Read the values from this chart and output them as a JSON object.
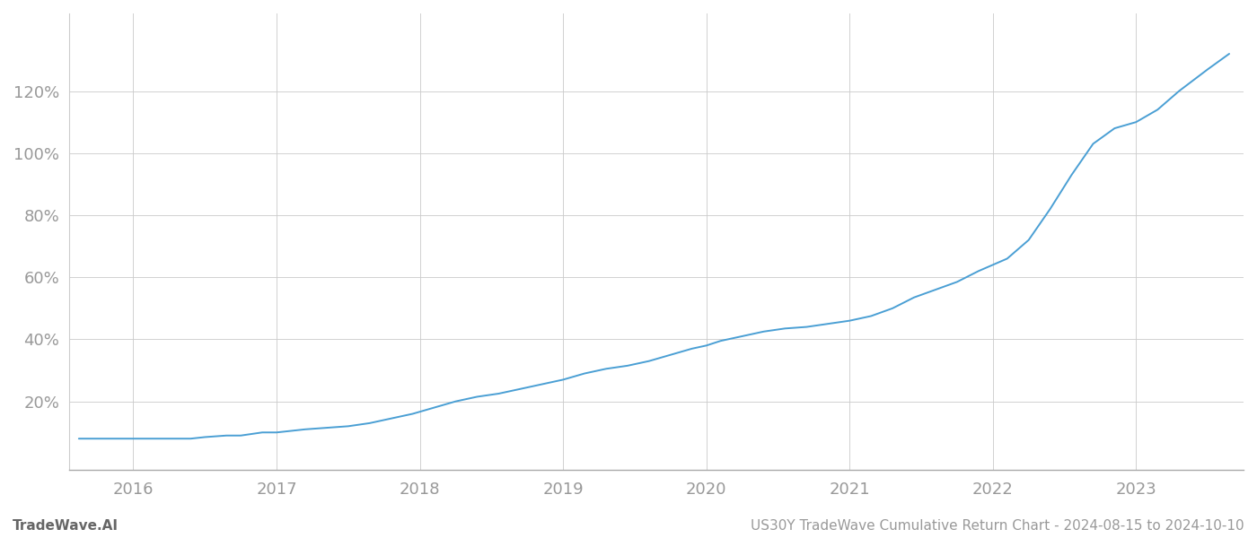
{
  "title": "US30Y TradeWave Cumulative Return Chart - 2024-08-15 to 2024-10-10",
  "watermark": "TradeWave.AI",
  "line_color": "#4a9fd4",
  "background_color": "#ffffff",
  "grid_color": "#cccccc",
  "tick_color": "#999999",
  "x_years": [
    2016,
    2017,
    2018,
    2019,
    2020,
    2021,
    2022,
    2023
  ],
  "y_ticks": [
    0.2,
    0.4,
    0.6,
    0.8,
    1.0,
    1.2
  ],
  "xlim": [
    2015.55,
    2023.75
  ],
  "ylim": [
    -0.02,
    1.45
  ],
  "curve_x": [
    2015.62,
    2015.8,
    2016.0,
    2016.2,
    2016.4,
    2016.5,
    2016.65,
    2016.75,
    2016.9,
    2017.0,
    2017.1,
    2017.2,
    2017.35,
    2017.5,
    2017.65,
    2017.8,
    2017.95,
    2018.1,
    2018.25,
    2018.4,
    2018.55,
    2018.7,
    2018.85,
    2019.0,
    2019.15,
    2019.3,
    2019.45,
    2019.6,
    2019.75,
    2019.9,
    2020.0,
    2020.1,
    2020.25,
    2020.4,
    2020.55,
    2020.7,
    2020.85,
    2021.0,
    2021.15,
    2021.3,
    2021.45,
    2021.6,
    2021.75,
    2021.9,
    2022.0,
    2022.1,
    2022.25,
    2022.4,
    2022.55,
    2022.7,
    2022.85,
    2023.0,
    2023.15,
    2023.3,
    2023.5,
    2023.65
  ],
  "curve_y": [
    0.08,
    0.08,
    0.08,
    0.08,
    0.08,
    0.085,
    0.09,
    0.09,
    0.1,
    0.1,
    0.105,
    0.11,
    0.115,
    0.12,
    0.13,
    0.145,
    0.16,
    0.18,
    0.2,
    0.215,
    0.225,
    0.24,
    0.255,
    0.27,
    0.29,
    0.305,
    0.315,
    0.33,
    0.35,
    0.37,
    0.38,
    0.395,
    0.41,
    0.425,
    0.435,
    0.44,
    0.45,
    0.46,
    0.475,
    0.5,
    0.535,
    0.56,
    0.585,
    0.62,
    0.64,
    0.66,
    0.72,
    0.82,
    0.93,
    1.03,
    1.08,
    1.1,
    1.14,
    1.2,
    1.27,
    1.32
  ]
}
